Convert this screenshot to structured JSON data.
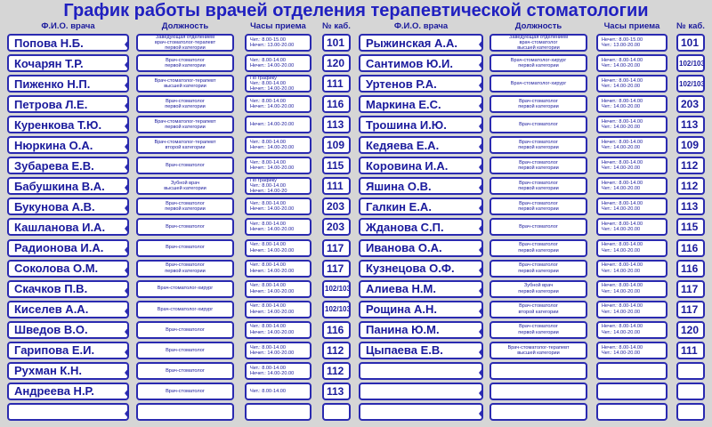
{
  "title": "График работы врачей отделения терапевтической стоматологии",
  "columns": [
    "Ф.И.О. врача",
    "Должность",
    "Часы приема",
    "№ каб."
  ],
  "left": [
    {
      "name": "Попова Н.Б.",
      "position": [
        "Заведующая отделением",
        "врач-стоматолог-терапевт",
        "первой категории"
      ],
      "hours": [
        "Чет.: 8.00-15.00",
        "Нечет.: 13.00-20.00"
      ],
      "room": "101"
    },
    {
      "name": "Кочарян Т.Р.",
      "position": [
        "Врач-стоматолог",
        "первой категории"
      ],
      "hours": [
        "Чет.: 8.00-14.00",
        "Нечет.: 14.00-20.00"
      ],
      "room": "120"
    },
    {
      "name": "Пиженко Н.П.",
      "position": [
        "Врач-стоматолог-терапевт",
        "высшей категории"
      ],
      "hours": [
        "По графику",
        "Чет.: 8.00-14.00",
        "Нечет.: 14.00-20.00"
      ],
      "room": "111"
    },
    {
      "name": "Петрова Л.Е.",
      "position": [
        "Врач-стоматолог",
        "первой категории"
      ],
      "hours": [
        "Чет.: 8.00-14.00",
        "Нечет.: 14.00-20.00"
      ],
      "room": "116"
    },
    {
      "name": "Куренкова Т.Ю.",
      "position": [
        "Врач-стоматолог-терапевт",
        "первой категории"
      ],
      "hours": [
        "Нечет.: 14.00-20.00"
      ],
      "room": "113"
    },
    {
      "name": "Нюркина О.А.",
      "position": [
        "Врач-стоматолог-терапевт",
        "второй категории"
      ],
      "hours": [
        "Чет.: 8.00-14.00",
        "Нечет.: 14.00-20.00"
      ],
      "room": "109"
    },
    {
      "name": "Зубарева Е.В.",
      "position": [
        "Врач-стоматолог"
      ],
      "hours": [
        "Чет.: 8.00-14.00",
        "Нечет.: 14.00-20.00"
      ],
      "room": "115"
    },
    {
      "name": "Бабушкина В.А.",
      "position": [
        "Зубной врач",
        "высшей категории"
      ],
      "hours": [
        "По графику",
        "Чет.: 8.00-14.00",
        "Нечет.: 14.00-20"
      ],
      "room": "111"
    },
    {
      "name": "Букунова А.В.",
      "position": [
        "Врач-стоматолог",
        "первой категории"
      ],
      "hours": [
        "Чет.: 8.00-14.00",
        "Нечет.: 14.00-20.00"
      ],
      "room": "203"
    },
    {
      "name": "Кашланова И.А.",
      "position": [
        "Врач-стоматолог"
      ],
      "hours": [
        "Чет.: 8.00-14.00",
        "Нечет.: 14.00-20.00"
      ],
      "room": "203"
    },
    {
      "name": "Радионова И.А.",
      "position": [
        "Врач-стоматолог"
      ],
      "hours": [
        "Чет.: 8.00-14.00",
        "Нечет.: 14.00-20.00"
      ],
      "room": "117"
    },
    {
      "name": "Соколова О.М.",
      "position": [
        "Врач-стоматолог",
        "первой категории"
      ],
      "hours": [
        "Чет.: 8.00-14.00",
        "Нечет.: 14.00-20.00"
      ],
      "room": "117"
    },
    {
      "name": "Скачков П.В.",
      "position": [
        "Врач-стоматолог-хирург"
      ],
      "hours": [
        "Чет.: 8.00-14.00",
        "Нечет.: 14.00-20.00"
      ],
      "room": "102/103"
    },
    {
      "name": "Киселев А.А.",
      "position": [
        "Врач-стоматолог-хирург"
      ],
      "hours": [
        "Чет.: 8.00-14.00",
        "Нечет.: 14.00-20.00"
      ],
      "room": "102/103"
    },
    {
      "name": "Шведов В.О.",
      "position": [
        "Врач-стоматолог"
      ],
      "hours": [
        "Чет.: 8.00-14.00",
        "Нечет.: 14.00-20.00"
      ],
      "room": "116"
    },
    {
      "name": "Гарипова Е.И.",
      "position": [
        "Врач-стоматолог"
      ],
      "hours": [
        "Чет.: 8.00-14.00",
        "Нечет.: 14.00-20.00"
      ],
      "room": "112"
    },
    {
      "name": "Рухман К.Н.",
      "position": [
        "Врач-стоматолог"
      ],
      "hours": [
        "Чет.: 8.00-14.00",
        "Нечет.: 14.00-20.00"
      ],
      "room": "112"
    },
    {
      "name": "Андреева Н.Р.",
      "position": [
        "Врач-стоматолог"
      ],
      "hours": [
        "Чет.: 8.00-14.00"
      ],
      "room": "113"
    }
  ],
  "right": [
    {
      "name": "Рыжинская А.А.",
      "position": [
        "Заведующая отделением",
        "врач-стоматолог",
        "высшей категории"
      ],
      "hours": [
        "Нечет.: 8.00-15.00",
        "Чет.: 13.00-20.00"
      ],
      "room": "101"
    },
    {
      "name": "Сантимов Ю.И.",
      "position": [
        "Врач-стоматолог-хирург",
        "первой категории"
      ],
      "hours": [
        "Нечет.: 8.00-14.00",
        "Чет.: 14.00-20.00"
      ],
      "room": "102/103"
    },
    {
      "name": "Уртенов Р.А.",
      "position": [
        "Врач-стоматолог-хирург"
      ],
      "hours": [
        "Нечет.: 8.00-14.00",
        "Чет.: 14.00-20.00"
      ],
      "room": "102/103"
    },
    {
      "name": "Маркина Е.С.",
      "position": [
        "Врач-стоматолог",
        "первой категории"
      ],
      "hours": [
        "Нечет.: 8.00-14.00",
        "Чет.: 14.00-20.00"
      ],
      "room": "203"
    },
    {
      "name": "Трошина И.Ю.",
      "position": [
        "Врач-стоматолог"
      ],
      "hours": [
        "Нечет.: 8.00-14.00",
        "Чет.: 14.00-20.00"
      ],
      "room": "113"
    },
    {
      "name": "Кедяева Е.А.",
      "position": [
        "Врач-стоматолог",
        "первой категории"
      ],
      "hours": [
        "Нечет.: 8.00-14.00",
        "Чет.: 14.00-20.00"
      ],
      "room": "109"
    },
    {
      "name": "Коровина И.А.",
      "position": [
        "Врач-стоматолог",
        "первой категории"
      ],
      "hours": [
        "Нечет.: 8.00-14.00",
        "Чет.: 14.00-20.00"
      ],
      "room": "112"
    },
    {
      "name": "Яшина О.В.",
      "position": [
        "Врач-стоматолог",
        "первой категории"
      ],
      "hours": [
        "Нечет.: 8.00-14.00",
        "Чет.: 14.00-20.00"
      ],
      "room": "112"
    },
    {
      "name": "Галкин Е.А.",
      "position": [
        "Врач-стоматолог",
        "первой категории"
      ],
      "hours": [
        "Нечет.: 8.00-14.00",
        "Чет.: 14.00-20.00"
      ],
      "room": "113"
    },
    {
      "name": "Жданова С.П.",
      "position": [
        "Врач-стоматолог"
      ],
      "hours": [
        "Нечет.: 8.00-14.00",
        "Чет.: 14.00-20.00"
      ],
      "room": "115"
    },
    {
      "name": "Иванова О.А.",
      "position": [
        "Врач-стоматолог",
        "первой категории"
      ],
      "hours": [
        "Нечет.: 8.00-14.00",
        "Чет.: 14.00-20.00"
      ],
      "room": "116"
    },
    {
      "name": "Кузнецова О.Ф.",
      "position": [
        "Врач-стоматолог",
        "первой категории"
      ],
      "hours": [
        "Нечет.: 8.00-14.00",
        "Чет.: 14.00-20.00"
      ],
      "room": "116"
    },
    {
      "name": "Алиева Н.М.",
      "position": [
        "Зубной врач",
        "первой категории"
      ],
      "hours": [
        "Нечет.: 8.00-14.00",
        "Чет.: 14.00-20.00"
      ],
      "room": "117"
    },
    {
      "name": "Рощина А.Н.",
      "position": [
        "Врач-стоматолог",
        "второй категории"
      ],
      "hours": [
        "Нечет.: 8.00-14.00",
        "Чет.: 14.00-20.00"
      ],
      "room": "117"
    },
    {
      "name": "Панина Ю.М.",
      "position": [
        "Врач-стоматолог",
        "первой категории"
      ],
      "hours": [
        "Нечет.: 8.00-14.00",
        "Чет.: 14.00-20.00"
      ],
      "room": "120"
    },
    {
      "name": "Цыпаева Е.В.",
      "position": [
        "Врач-стоматолог-терапевт",
        "высшей категории"
      ],
      "hours": [
        "Нечет.: 8.00-14.00",
        "Чет.: 14.00-20.00"
      ],
      "room": "111"
    }
  ]
}
